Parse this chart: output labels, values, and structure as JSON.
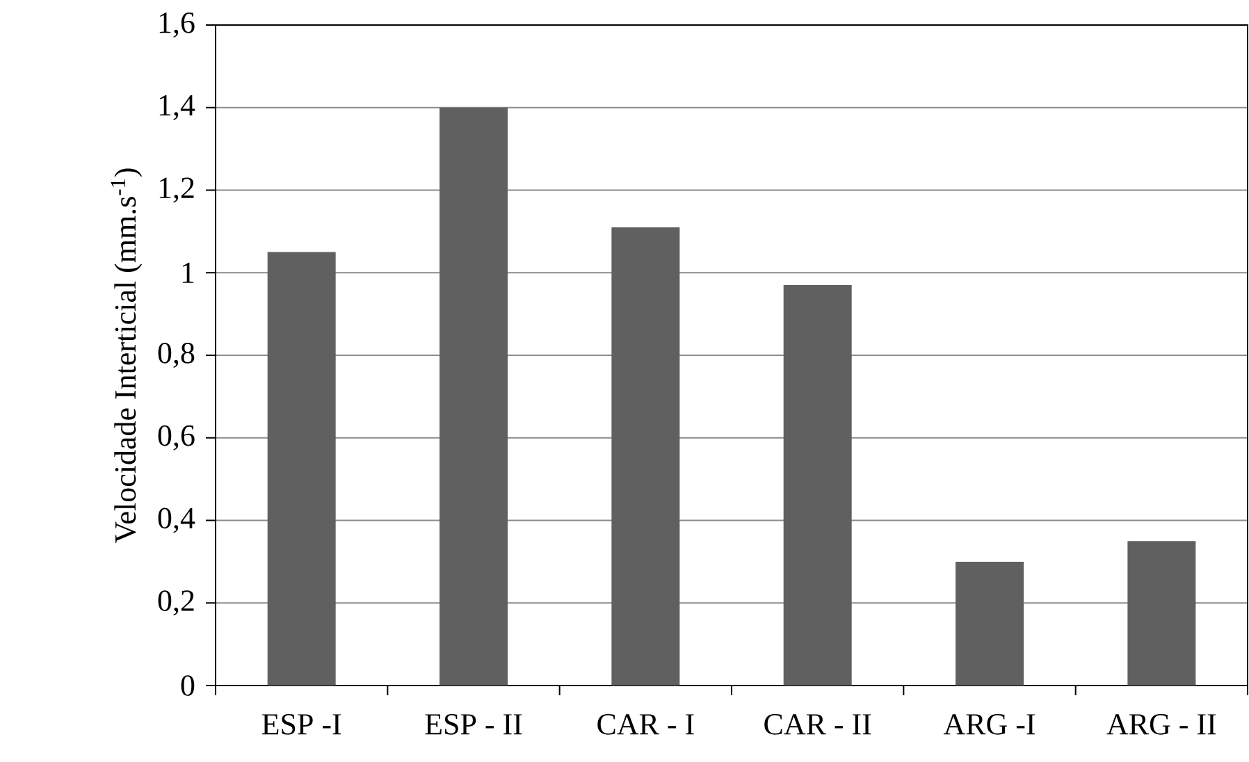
{
  "chart_data": {
    "type": "bar",
    "ylabel": "Velocidade Interticial (mm.s$^{-1}$)",
    "categories": [
      "ESP -I",
      "ESP - II",
      "CAR - I",
      "CAR - II",
      "ARG -I",
      "ARG - II"
    ],
    "values": [
      1.05,
      1.4,
      1.11,
      0.97,
      0.3,
      0.35
    ],
    "color": "#606060",
    "ylim": [
      0,
      1.6
    ],
    "yticks": [
      {
        "value": 0,
        "label": "0"
      },
      {
        "value": 0.2,
        "label": "0,2"
      },
      {
        "value": 0.4,
        "label": "0,4"
      },
      {
        "value": 0.6,
        "label": "0,6"
      },
      {
        "value": 0.8,
        "label": "0,8"
      },
      {
        "value": 1,
        "label": "1"
      },
      {
        "value": 1.2,
        "label": "1,2"
      },
      {
        "value": 1.4,
        "label": "1,4"
      },
      {
        "value": 1.6,
        "label": "1,6"
      }
    ],
    "grid": "y"
  }
}
